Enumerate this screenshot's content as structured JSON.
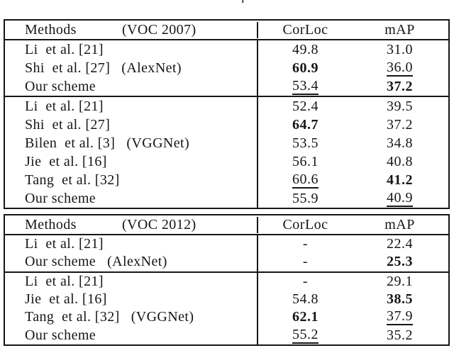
{
  "caption_fragment": "p",
  "colors": {
    "text": "#161616",
    "border": "#161616",
    "background": "#ffffff"
  },
  "tables": [
    {
      "name": "results-voc2007",
      "header": {
        "methods": "Methods",
        "dataset": "(VOC 2007)",
        "corloc": "CorLoc",
        "map": "mAP"
      },
      "rows": [
        {
          "method": "Li  et al. [21]",
          "annotation": "",
          "corloc": "49.8",
          "corloc_style": "normal",
          "map": "31.0",
          "map_style": "normal",
          "separator_above": false
        },
        {
          "method": "Shi  et al. [27]",
          "annotation": "(AlexNet)",
          "corloc": "60.9",
          "corloc_style": "bold",
          "map": "36.0",
          "map_style": "underline",
          "separator_above": false
        },
        {
          "method": "Our scheme",
          "annotation": "",
          "corloc": "53.4",
          "corloc_style": "underline",
          "map": "37.2",
          "map_style": "bold",
          "separator_above": false
        },
        {
          "method": "Li  et al. [21]",
          "annotation": "",
          "corloc": "52.4",
          "corloc_style": "normal",
          "map": "39.5",
          "map_style": "normal",
          "separator_above": true
        },
        {
          "method": "Shi  et al. [27]",
          "annotation": "",
          "corloc": "64.7",
          "corloc_style": "bold",
          "map": "37.2",
          "map_style": "normal",
          "separator_above": false
        },
        {
          "method": "Bilen  et al. [3]",
          "annotation": "(VGGNet)",
          "corloc": "53.5",
          "corloc_style": "normal",
          "map": "34.8",
          "map_style": "normal",
          "separator_above": false
        },
        {
          "method": "Jie  et al. [16]",
          "annotation": "",
          "corloc": "56.1",
          "corloc_style": "normal",
          "map": "40.8",
          "map_style": "normal",
          "separator_above": false
        },
        {
          "method": "Tang  et al. [32]",
          "annotation": "",
          "corloc": "60.6",
          "corloc_style": "underline",
          "map": "41.2",
          "map_style": "bold",
          "separator_above": false
        },
        {
          "method": "Our scheme",
          "annotation": "",
          "corloc": "55.9",
          "corloc_style": "normal",
          "map": "40.9",
          "map_style": "underline",
          "separator_above": false
        }
      ]
    },
    {
      "name": "results-voc2012",
      "header": {
        "methods": "Methods",
        "dataset": "(VOC 2012)",
        "corloc": "CorLoc",
        "map": "mAP"
      },
      "rows": [
        {
          "method": "Li  et al. [21]",
          "annotation": "",
          "corloc": "-",
          "corloc_style": "normal",
          "map": "22.4",
          "map_style": "normal",
          "separator_above": false
        },
        {
          "method": "Our scheme",
          "annotation": "(AlexNet)",
          "corloc": "-",
          "corloc_style": "normal",
          "map": "25.3",
          "map_style": "bold",
          "separator_above": false
        },
        {
          "method": "Li  et al. [21]",
          "annotation": "",
          "corloc": "-",
          "corloc_style": "normal",
          "map": "29.1",
          "map_style": "normal",
          "separator_above": true
        },
        {
          "method": "Jie  et al. [16]",
          "annotation": "",
          "corloc": "54.8",
          "corloc_style": "normal",
          "map": "38.5",
          "map_style": "bold",
          "separator_above": false
        },
        {
          "method": "Tang  et al. [32]",
          "annotation": "(VGGNet)",
          "corloc": "62.1",
          "corloc_style": "bold",
          "map": "37.9",
          "map_style": "underline",
          "separator_above": false
        },
        {
          "method": "Our scheme",
          "annotation": "",
          "corloc": "55.2",
          "corloc_style": "underline",
          "map": "35.2",
          "map_style": "normal",
          "separator_above": false
        }
      ]
    }
  ]
}
